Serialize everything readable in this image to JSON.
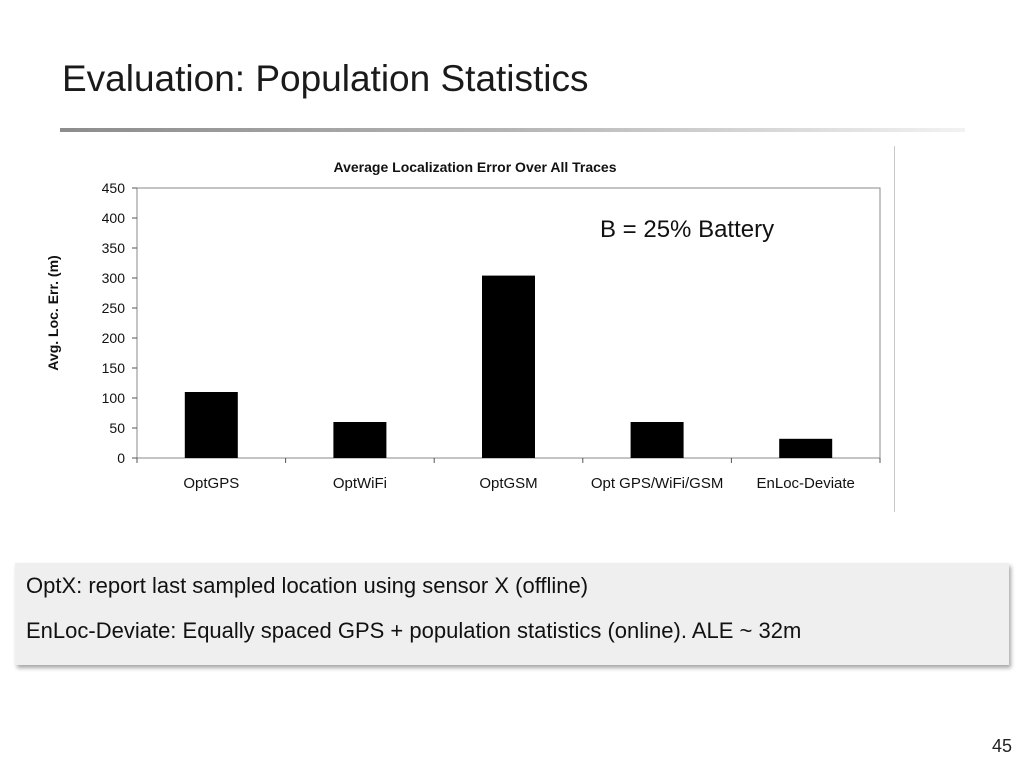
{
  "slide": {
    "title": "Evaluation: Population Statistics",
    "page_number": "45"
  },
  "chart_data": {
    "type": "bar",
    "title": "Average Localization Error Over All Traces",
    "xlabel": "",
    "ylabel": "Avg. Loc. Err. (m)",
    "categories": [
      "OptGPS",
      "OptWiFi",
      "OptGSM",
      "Opt GPS/WiFi/GSM",
      "EnLoc-Deviate"
    ],
    "values": [
      110,
      60,
      304,
      60,
      32
    ],
    "ylim": [
      0,
      450
    ],
    "yticks": [
      0,
      50,
      100,
      150,
      200,
      250,
      300,
      350,
      400,
      450
    ],
    "annotation": "B = 25% Battery",
    "grid": false,
    "legend": "none",
    "bar_color": "#000000"
  },
  "notes": {
    "line1": "OptX: report last sampled location using sensor X (offline)",
    "line2": "EnLoc-Deviate:  Equally spaced GPS + population statistics (online). ALE ~ 32m"
  }
}
